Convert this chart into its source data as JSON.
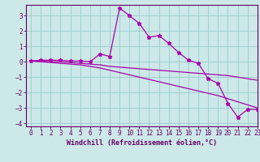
{
  "xlabel": "Windchill (Refroidissement éolien,°C)",
  "background_color": "#cce8e8",
  "line_color": "#aa00aa",
  "grid_color": "#99cccc",
  "axis_color": "#660066",
  "text_color": "#660066",
  "x_data": [
    0,
    1,
    2,
    3,
    4,
    5,
    6,
    7,
    8,
    9,
    10,
    11,
    12,
    13,
    14,
    15,
    16,
    17,
    18,
    19,
    20,
    21,
    22,
    23
  ],
  "line1_y": [
    0.05,
    0.1,
    0.1,
    0.1,
    0.05,
    0.05,
    0.0,
    0.5,
    0.35,
    3.5,
    3.0,
    2.5,
    1.6,
    1.7,
    1.2,
    0.6,
    0.1,
    -0.1,
    -1.1,
    -1.4,
    -2.7,
    -3.6,
    -3.1,
    -3.1
  ],
  "line2_y": [
    0.05,
    0.05,
    0.0,
    0.0,
    -0.05,
    -0.1,
    -0.15,
    -0.2,
    -0.3,
    -0.35,
    -0.4,
    -0.45,
    -0.5,
    -0.55,
    -0.6,
    -0.65,
    -0.7,
    -0.75,
    -0.8,
    -0.85,
    -0.9,
    -1.0,
    -1.1,
    -1.2
  ],
  "line3_y": [
    0.05,
    0.0,
    -0.05,
    -0.1,
    -0.15,
    -0.2,
    -0.3,
    -0.4,
    -0.55,
    -0.7,
    -0.85,
    -1.0,
    -1.15,
    -1.3,
    -1.45,
    -1.6,
    -1.75,
    -1.9,
    -2.05,
    -2.2,
    -2.4,
    -2.6,
    -2.8,
    -3.0
  ],
  "xlim": [
    -0.5,
    23
  ],
  "ylim": [
    -4.2,
    3.7
  ],
  "yticks": [
    -4,
    -3,
    -2,
    -1,
    0,
    1,
    2,
    3
  ],
  "xticks": [
    0,
    1,
    2,
    3,
    4,
    5,
    6,
    7,
    8,
    9,
    10,
    11,
    12,
    13,
    14,
    15,
    16,
    17,
    18,
    19,
    20,
    21,
    22,
    23
  ],
  "font": "monospace",
  "fontsize_label": 6,
  "fontsize_tick": 5.5
}
